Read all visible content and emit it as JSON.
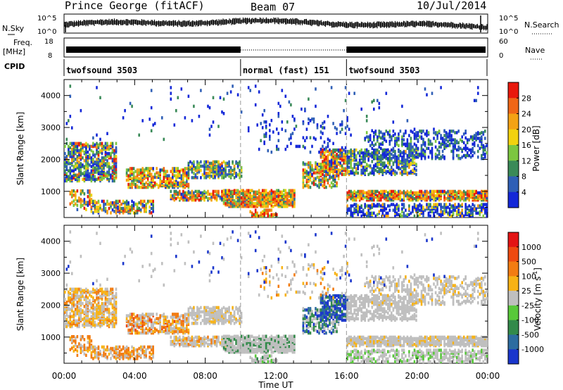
{
  "header": {
    "station": "Prince George (fitACF)",
    "beam": "Beam 07",
    "date": "10/Jul/2014"
  },
  "panels": {
    "nsky_label": "N.Sky",
    "nsky_ticks": [
      "10^5",
      "10^0"
    ],
    "nsearch_label": "N.Search",
    "nsearch_ticks": [
      "10^5",
      "10^0"
    ],
    "freq_label_1": "Freq.",
    "freq_label_2": "[MHz]",
    "freq_ticks": [
      "18",
      "8"
    ],
    "nave_label": "Nave",
    "nave_ticks": [
      "60",
      "0"
    ],
    "cpid_label": "CPID"
  },
  "chart_data": {
    "type": "heatmap",
    "xlabel": "Time UT",
    "x_tick_labels": [
      "00:00",
      "04:00",
      "08:00",
      "12:00",
      "16:00",
      "20:00",
      "00:00"
    ],
    "x_range_hours": [
      0,
      24
    ],
    "cpid_segments": [
      {
        "label": "twofsound 3503",
        "start_hour": 0,
        "end_hour": 10
      },
      {
        "label": "normal (fast) 151",
        "start_hour": 10,
        "end_hour": 16
      },
      {
        "label": "twofsound 3503",
        "start_hour": 16,
        "end_hour": 24
      }
    ],
    "panels": [
      {
        "name": "power",
        "ylabel": "Slant Range [km]",
        "y_tick_labels": [
          "1000",
          "2000",
          "3000",
          "4000"
        ],
        "ylim": [
          180,
          4500
        ],
        "colorbar_label": "Power [dB]",
        "colorbar_ticks": [
          "4",
          "8",
          "12",
          "16",
          "20",
          "24",
          "28"
        ],
        "colorbar_colors": [
          "#1428d8",
          "#2f5fb6",
          "#3a8a58",
          "#7cc640",
          "#f2d20e",
          "#f4a214",
          "#f06616",
          "#e8190c"
        ]
      },
      {
        "name": "velocity",
        "ylabel": "Slant Range [km]",
        "y_tick_labels": [
          "1000",
          "2000",
          "3000",
          "4000"
        ],
        "ylim": [
          180,
          4500
        ],
        "colorbar_label": "Velocity [m s",
        "colorbar_label_sup": "-1",
        "colorbar_label_end": "]",
        "colorbar_ticks": [
          "1000",
          "500",
          "100",
          "25",
          "-25",
          "-100",
          "-500",
          "-1000"
        ],
        "colorbar_colors": [
          "#1a36cc",
          "#2d6ca0",
          "#338a4a",
          "#58c83a",
          "#bfbfbf",
          "#f7b215",
          "#f27c12",
          "#ee4a10",
          "#e31414"
        ]
      }
    ]
  }
}
